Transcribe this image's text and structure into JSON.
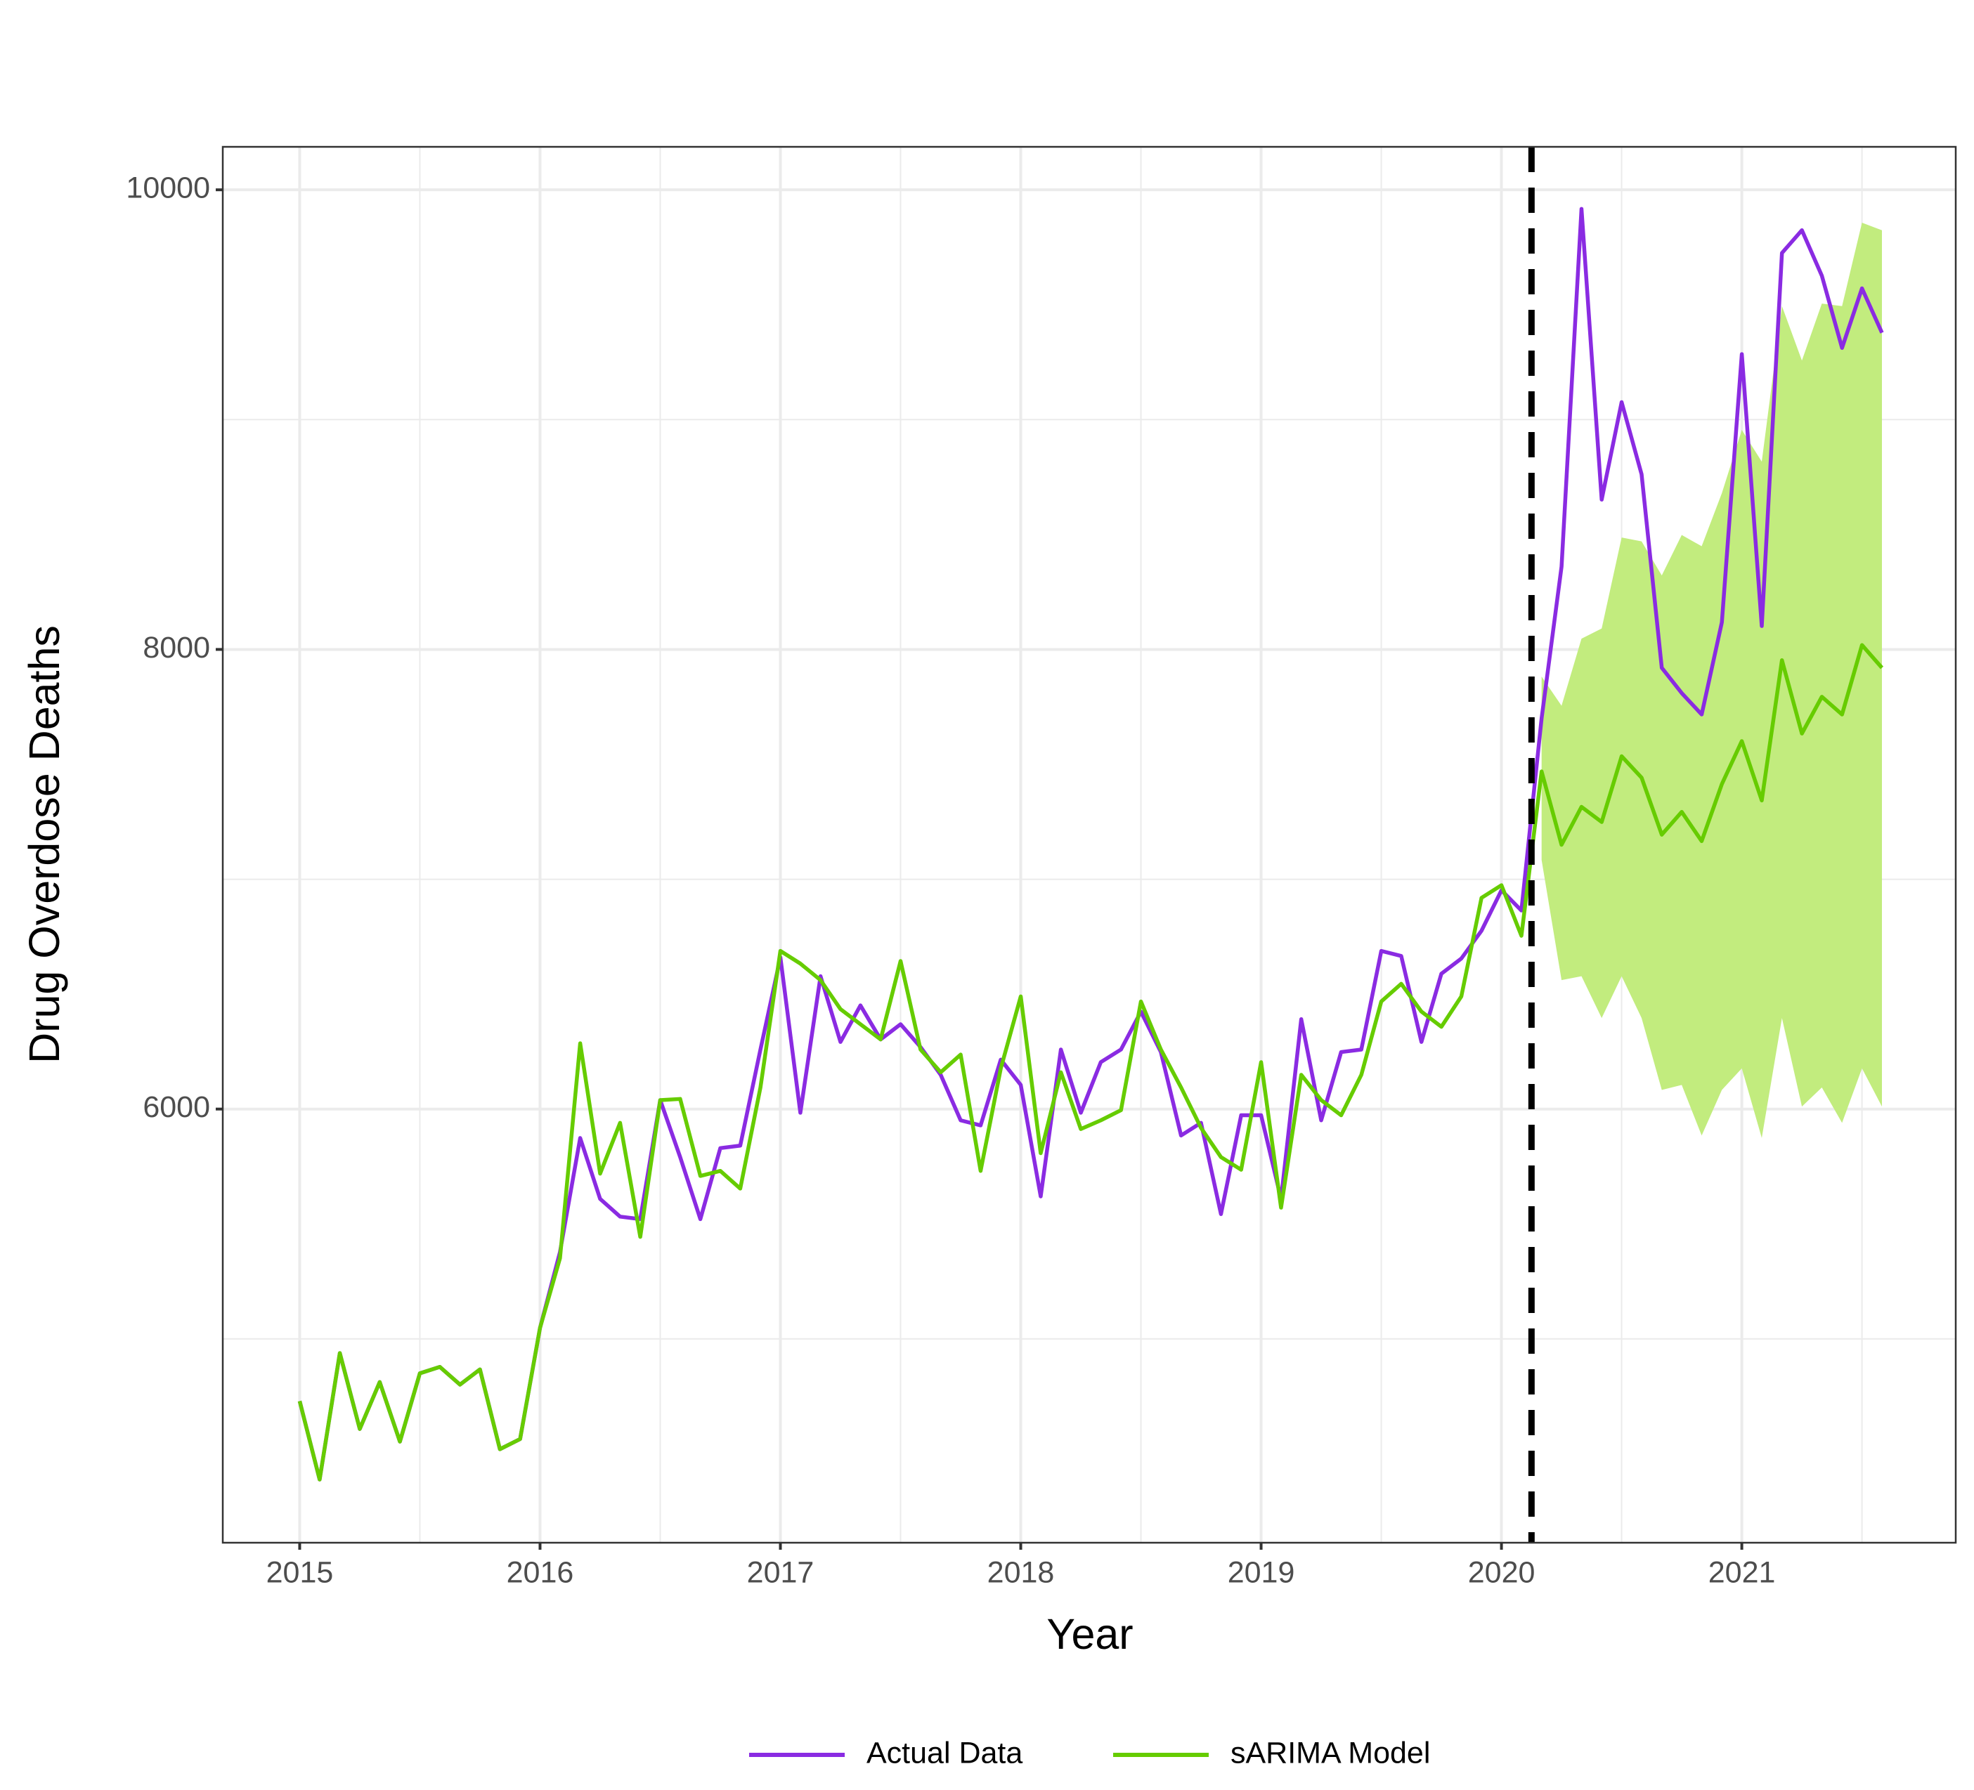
{
  "chart_data": {
    "type": "line",
    "x_label": "Year",
    "y_label": "Drug Overdose Deaths",
    "x": [
      2015,
      2015.083,
      2015.167,
      2015.25,
      2015.333,
      2015.417,
      2015.5,
      2015.583,
      2015.667,
      2015.75,
      2015.833,
      2015.917,
      2016,
      2016.083,
      2016.167,
      2016.25,
      2016.333,
      2016.417,
      2016.5,
      2016.583,
      2016.667,
      2016.75,
      2016.833,
      2016.917,
      2017,
      2017.083,
      2017.167,
      2017.25,
      2017.333,
      2017.417,
      2017.5,
      2017.583,
      2017.667,
      2017.75,
      2017.833,
      2017.917,
      2018,
      2018.083,
      2018.167,
      2018.25,
      2018.333,
      2018.417,
      2018.5,
      2018.583,
      2018.667,
      2018.75,
      2018.833,
      2018.917,
      2019,
      2019.083,
      2019.167,
      2019.25,
      2019.333,
      2019.417,
      2019.5,
      2019.583,
      2019.667,
      2019.75,
      2019.833,
      2019.917,
      2020,
      2020.083,
      2020.167,
      2020.25,
      2020.333,
      2020.417,
      2020.5,
      2020.583,
      2020.667,
      2020.75,
      2020.833,
      2020.917,
      2021,
      2021.083,
      2021.167,
      2021.25,
      2021.333,
      2021.417,
      2021.5,
      2021.583
    ],
    "series": [
      {
        "name": "Actual Data",
        "color": "#8a2be2",
        "values": [
          4729,
          4388,
          4938,
          4608,
          4812,
          4553,
          4850,
          4878,
          4801,
          4867,
          4520,
          4564,
          5048,
          5378,
          5874,
          5609,
          5532,
          5521,
          6039,
          5791,
          5521,
          5830,
          5841,
          6259,
          6660,
          5984,
          6578,
          6292,
          6451,
          6303,
          6369,
          6270,
          6149,
          5951,
          5929,
          6215,
          6105,
          5620,
          6259,
          5984,
          6204,
          6259,
          6424,
          6248,
          5885,
          5940,
          5543,
          5973,
          5973,
          5609,
          6391,
          5951,
          6248,
          6259,
          6688,
          6666,
          6292,
          6589,
          6655,
          6776,
          6952,
          6864,
          7700,
          8360,
          9917,
          8652,
          9076,
          8762,
          7920,
          7810,
          7717,
          8118,
          9285,
          8102,
          9725,
          9824,
          9626,
          9312,
          9571,
          9378
        ]
      },
      {
        "name": "sARIMA Model",
        "color": "#66cc00",
        "values": [
          4729,
          4388,
          4938,
          4608,
          4812,
          4553,
          4850,
          4878,
          4801,
          4867,
          4520,
          4564,
          5048,
          5351,
          6286,
          5719,
          5940,
          5444,
          6039,
          6044,
          5709,
          5731,
          5654,
          6094,
          6688,
          6633,
          6561,
          6435,
          6369,
          6303,
          6644,
          6259,
          6160,
          6237,
          5731,
          6177,
          6490,
          5808,
          6160,
          5913,
          5951,
          5995,
          6468,
          6259,
          6094,
          5918,
          5791,
          5736,
          6204,
          5571,
          6149,
          6039,
          5973,
          6149,
          6468,
          6545,
          6424,
          6358,
          6490,
          6919,
          6974,
          6754,
          7469,
          7150,
          7315,
          7249,
          7535,
          7442,
          7194,
          7293,
          7166,
          7414,
          7601,
          7343,
          7953,
          7634,
          7794,
          7717,
          8019,
          7920
        ]
      }
    ],
    "interval": {
      "color": "#c2ec7e",
      "x": [
        2020.167,
        2020.25,
        2020.333,
        2020.417,
        2020.5,
        2020.583,
        2020.667,
        2020.75,
        2020.833,
        2020.917,
        2021,
        2021.083,
        2021.167,
        2021.25,
        2021.333,
        2021.417,
        2021.5,
        2021.583
      ],
      "lower": [
        7084,
        6561,
        6578,
        6396,
        6578,
        6396,
        6083,
        6105,
        5885,
        6083,
        6177,
        5874,
        6396,
        6011,
        6094,
        5940,
        6177,
        6011
      ],
      "upper": [
        7882,
        7755,
        8047,
        8091,
        8487,
        8470,
        8322,
        8498,
        8449,
        8680,
        8955,
        8817,
        9494,
        9257,
        9505,
        9494,
        9857,
        9824
      ]
    },
    "vline": 2020.125,
    "xlim": [
      2014.68,
      2021.89
    ],
    "ylim": [
      4113,
      10187
    ],
    "xticks": [
      2015,
      2016,
      2017,
      2018,
      2019,
      2020,
      2021
    ],
    "yticks": [
      6000,
      8000,
      10000
    ],
    "minor_xticks": [
      2015.5,
      2016.5,
      2017.5,
      2018.5,
      2019.5,
      2020.5,
      2021.5
    ],
    "minor_yticks": [
      5000,
      7000,
      9000
    ],
    "grid": true,
    "legend": "bottom"
  }
}
